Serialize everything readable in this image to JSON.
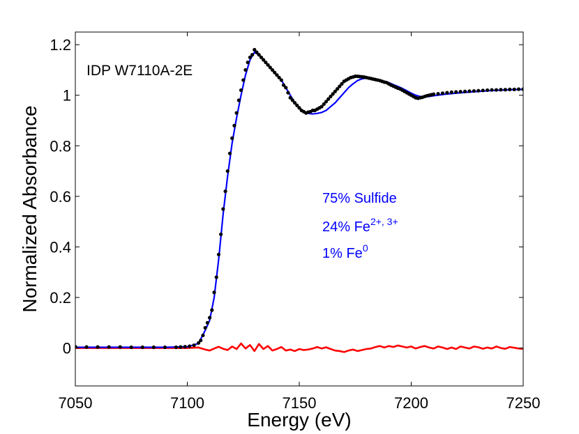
{
  "chart_data": {
    "type": "line",
    "xlabel": "Energy (eV)",
    "ylabel": "Normalized Absorbance",
    "xlim": [
      7050,
      7250
    ],
    "ylim": [
      -0.15,
      1.25
    ],
    "xticks": [
      "7050",
      "7100",
      "7150",
      "7200",
      "7250"
    ],
    "xtick_values": [
      7050,
      7100,
      7150,
      7200,
      7250
    ],
    "yticks": [
      "0",
      "0.2",
      "0.4",
      "0.6",
      "0.8",
      "1",
      "1.2"
    ],
    "ytick_values": [
      0,
      0.2,
      0.4,
      0.6,
      0.8,
      1.0,
      1.2
    ],
    "grid": false,
    "sample_label": "IDP W7110A-2E",
    "annotations": {
      "line1": "75% Sulfide",
      "line2_base": "24% Fe",
      "line2_sup": "2+, 3+",
      "line3_base": "1% Fe",
      "line3_sup": "0"
    },
    "colors": {
      "data": "#000000",
      "fit": "#0000ff",
      "residual": "#ff0000",
      "annotation": "#0000ff"
    },
    "series": [
      {
        "role": "data",
        "style": "markers",
        "x": [
          7050,
          7055,
          7060,
          7065,
          7070,
          7075,
          7080,
          7085,
          7090,
          7095,
          7097,
          7099,
          7101,
          7103,
          7105,
          7106,
          7107,
          7108,
          7109,
          7110,
          7111,
          7112,
          7113,
          7114,
          7115,
          7116,
          7117,
          7118,
          7119,
          7120,
          7121,
          7122,
          7123,
          7124,
          7125,
          7126,
          7127,
          7128,
          7129,
          7130,
          7131,
          7132,
          7133,
          7134,
          7135,
          7136,
          7137,
          7138,
          7139,
          7140,
          7141,
          7142,
          7143,
          7144,
          7145,
          7146,
          7147,
          7148,
          7149,
          7150,
          7151,
          7152,
          7153,
          7154,
          7155,
          7156,
          7157,
          7158,
          7159,
          7160,
          7161,
          7162,
          7163,
          7164,
          7165,
          7166,
          7167,
          7168,
          7169,
          7170,
          7171,
          7172,
          7173,
          7174,
          7175,
          7176,
          7177,
          7178,
          7179,
          7180,
          7181,
          7182,
          7183,
          7184,
          7185,
          7186,
          7187,
          7188,
          7189,
          7190,
          7191,
          7192,
          7193,
          7194,
          7195,
          7196,
          7197,
          7198,
          7199,
          7200,
          7201,
          7202,
          7203,
          7204,
          7205,
          7206,
          7207,
          7208,
          7209,
          7210,
          7212,
          7214,
          7216,
          7218,
          7220,
          7222,
          7224,
          7226,
          7228,
          7230,
          7232,
          7234,
          7236,
          7238,
          7240,
          7242,
          7244,
          7246,
          7248,
          7250
        ],
        "y": [
          0.005,
          0.004,
          0.004,
          0.004,
          0.004,
          0.003,
          0.003,
          0.003,
          0.003,
          0.003,
          0.004,
          0.005,
          0.007,
          0.011,
          0.02,
          0.03,
          0.05,
          0.08,
          0.1,
          0.12,
          0.15,
          0.22,
          0.28,
          0.37,
          0.45,
          0.55,
          0.62,
          0.7,
          0.77,
          0.83,
          0.88,
          0.93,
          0.98,
          1.02,
          1.06,
          1.1,
          1.13,
          1.15,
          1.16,
          1.18,
          1.17,
          1.16,
          1.15,
          1.14,
          1.13,
          1.12,
          1.11,
          1.1,
          1.09,
          1.08,
          1.07,
          1.06,
          1.04,
          1.03,
          1.01,
          0.99,
          0.98,
          0.97,
          0.96,
          0.95,
          0.94,
          0.935,
          0.93,
          0.933,
          0.935,
          0.94,
          0.94,
          0.945,
          0.95,
          0.955,
          0.965,
          0.975,
          0.985,
          0.995,
          1.005,
          1.015,
          1.025,
          1.035,
          1.045,
          1.055,
          1.06,
          1.065,
          1.07,
          1.072,
          1.075,
          1.075,
          1.074,
          1.073,
          1.072,
          1.07,
          1.068,
          1.066,
          1.064,
          1.062,
          1.06,
          1.058,
          1.055,
          1.052,
          1.05,
          1.045,
          1.04,
          1.036,
          1.032,
          1.028,
          1.025,
          1.02,
          1.015,
          1.01,
          1.005,
          1.0,
          0.995,
          0.99,
          0.988,
          0.99,
          0.992,
          0.995,
          0.998,
          1.0,
          1.002,
          1.004,
          1.006,
          1.008,
          1.01,
          1.012,
          1.013,
          1.014,
          1.015,
          1.016,
          1.017,
          1.018,
          1.019,
          1.02,
          1.021,
          1.021,
          1.022,
          1.022,
          1.023,
          1.023,
          1.024,
          1.024
        ]
      },
      {
        "role": "fit",
        "style": "line",
        "x": [
          7050,
          7090,
          7100,
          7105,
          7108,
          7110,
          7112,
          7114,
          7116,
          7118,
          7120,
          7122,
          7124,
          7126,
          7128,
          7130,
          7132,
          7134,
          7136,
          7138,
          7140,
          7142,
          7144,
          7146,
          7148,
          7150,
          7152,
          7154,
          7156,
          7158,
          7160,
          7162,
          7164,
          7166,
          7168,
          7170,
          7172,
          7174,
          7176,
          7178,
          7180,
          7182,
          7184,
          7186,
          7188,
          7190,
          7192,
          7194,
          7196,
          7198,
          7200,
          7202,
          7204,
          7206,
          7208,
          7210,
          7215,
          7220,
          7225,
          7230,
          7235,
          7240,
          7245,
          7250
        ],
        "y": [
          0.003,
          0.003,
          0.005,
          0.018,
          0.07,
          0.11,
          0.2,
          0.35,
          0.53,
          0.68,
          0.81,
          0.91,
          1.0,
          1.08,
          1.14,
          1.17,
          1.16,
          1.14,
          1.12,
          1.1,
          1.08,
          1.06,
          1.03,
          1.0,
          0.97,
          0.95,
          0.935,
          0.928,
          0.926,
          0.928,
          0.932,
          0.94,
          0.955,
          0.97,
          0.99,
          1.01,
          1.03,
          1.045,
          1.058,
          1.065,
          1.068,
          1.068,
          1.065,
          1.06,
          1.055,
          1.05,
          1.042,
          1.035,
          1.027,
          1.018,
          1.008,
          1.0,
          0.995,
          0.993,
          0.995,
          0.998,
          1.004,
          1.008,
          1.012,
          1.015,
          1.018,
          1.02,
          1.022,
          1.023
        ]
      },
      {
        "role": "residual",
        "style": "line",
        "x": [
          7050,
          7060,
          7070,
          7080,
          7090,
          7100,
          7105,
          7108,
          7110,
          7112,
          7114,
          7116,
          7118,
          7120,
          7122,
          7124,
          7126,
          7128,
          7130,
          7132,
          7134,
          7136,
          7138,
          7140,
          7142,
          7144,
          7146,
          7148,
          7150,
          7152,
          7154,
          7156,
          7158,
          7160,
          7162,
          7164,
          7166,
          7168,
          7170,
          7172,
          7174,
          7176,
          7178,
          7180,
          7182,
          7184,
          7186,
          7188,
          7190,
          7192,
          7194,
          7196,
          7198,
          7200,
          7202,
          7204,
          7206,
          7208,
          7210,
          7212,
          7214,
          7216,
          7218,
          7220,
          7222,
          7224,
          7226,
          7228,
          7230,
          7232,
          7234,
          7236,
          7238,
          7240,
          7242,
          7244,
          7246,
          7248,
          7250
        ],
        "y": [
          0.0,
          0.0,
          0.0,
          0.0,
          0.0,
          0.0,
          0.002,
          -0.006,
          -0.01,
          -0.002,
          0.005,
          -0.003,
          -0.008,
          0.006,
          -0.004,
          0.018,
          -0.002,
          0.012,
          -0.012,
          0.016,
          -0.004,
          0.008,
          -0.01,
          -0.004,
          0.004,
          -0.01,
          -0.006,
          -0.012,
          -0.004,
          -0.008,
          -0.006,
          -0.002,
          0.004,
          -0.002,
          0.003,
          -0.004,
          -0.01,
          -0.012,
          -0.016,
          -0.01,
          -0.006,
          -0.012,
          -0.008,
          -0.004,
          -0.002,
          0.004,
          0.008,
          0.002,
          0.008,
          0.004,
          0.01,
          0.006,
          0.002,
          0.006,
          -0.002,
          0.004,
          0.008,
          0.002,
          -0.002,
          0.006,
          0.002,
          -0.004,
          0.002,
          -0.004,
          0.006,
          0.002,
          -0.002,
          0.006,
          0.003,
          -0.003,
          0.002,
          -0.002,
          0.006,
          0.0,
          -0.003,
          0.004,
          0.001,
          -0.002,
          -0.003
        ]
      }
    ]
  }
}
